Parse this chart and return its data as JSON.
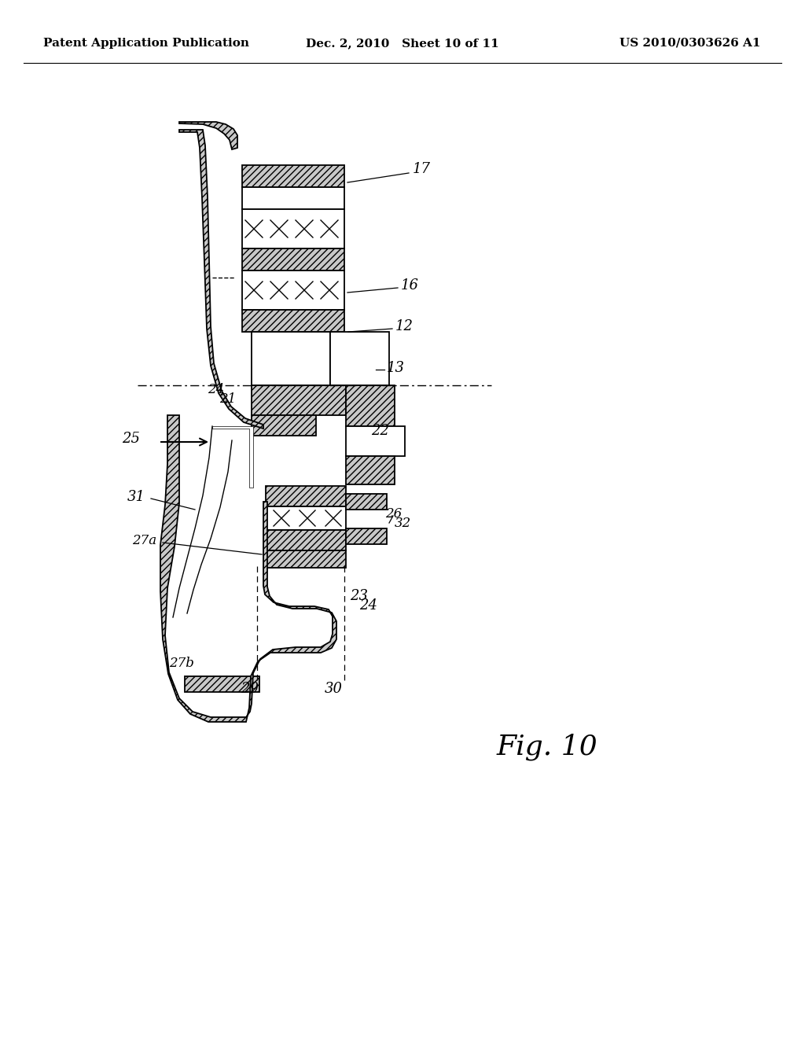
{
  "header_left": "Patent Application Publication",
  "header_mid": "Dec. 2, 2010   Sheet 10 of 11",
  "header_right": "US 2010/0303626 A1",
  "fig_label": "Fig. 10",
  "bg_color": "#ffffff",
  "line_color": "#000000",
  "fig_label_fontsize": 26,
  "header_fontsize": 11,
  "lw": 1.3
}
